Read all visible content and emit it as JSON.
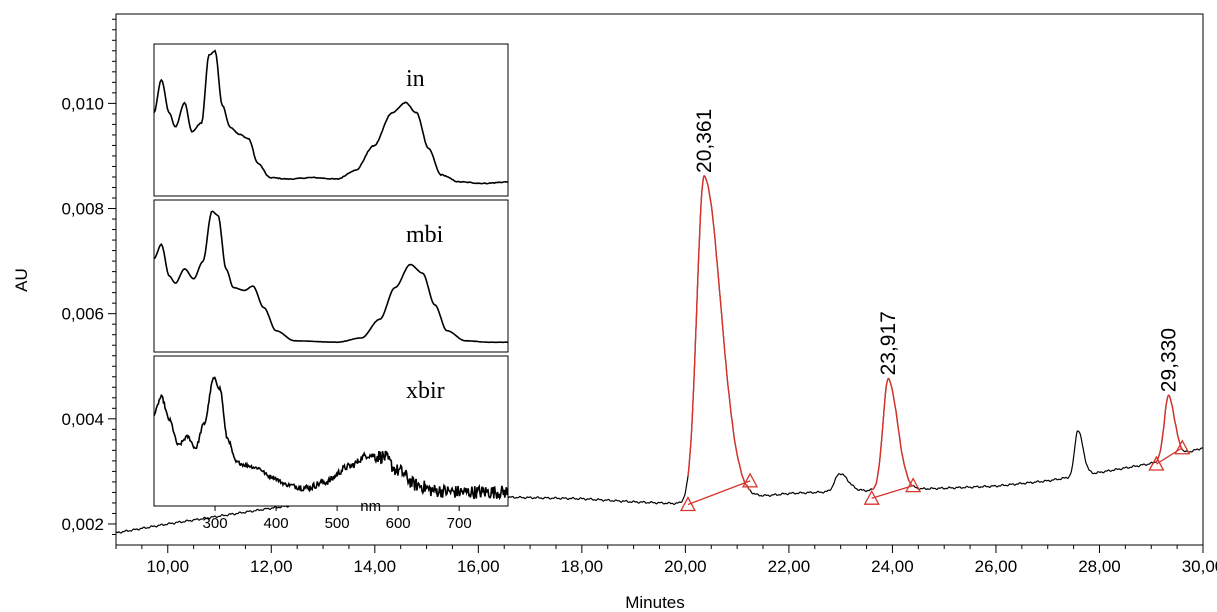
{
  "chart_data": {
    "type": "line",
    "xlabel": "Minutes",
    "ylabel": "AU",
    "xlim": [
      9.0,
      30.0
    ],
    "ylim": [
      0.0016,
      0.0117
    ],
    "x_ticks": [
      10,
      12,
      14,
      16,
      18,
      20,
      22,
      24,
      26,
      28,
      30
    ],
    "x_tick_labels": [
      "10,00",
      "12,00",
      "14,00",
      "16,00",
      "18,00",
      "20,00",
      "22,00",
      "24,00",
      "26,00",
      "28,00",
      "30,00"
    ],
    "y_ticks": [
      0.002,
      0.004,
      0.006,
      0.008,
      0.01
    ],
    "y_tick_labels": [
      "0,002",
      "0,004",
      "0,006",
      "0,008",
      "0,010"
    ],
    "grid": false,
    "chromatogram": {
      "baseline": [
        [
          9.0,
          0.00183
        ],
        [
          10,
          0.002
        ],
        [
          11,
          0.00215
        ],
        [
          12,
          0.0023
        ],
        [
          13,
          0.00243
        ],
        [
          14,
          0.0025
        ],
        [
          16,
          0.00252
        ],
        [
          18,
          0.00248
        ],
        [
          19,
          0.00242
        ],
        [
          20,
          0.00238
        ],
        [
          21,
          0.00248
        ],
        [
          22,
          0.00258
        ],
        [
          23,
          0.00262
        ],
        [
          24,
          0.00265
        ],
        [
          25,
          0.00268
        ],
        [
          26,
          0.00272
        ],
        [
          27,
          0.00282
        ],
        [
          28,
          0.00298
        ],
        [
          29,
          0.00315
        ],
        [
          30,
          0.00345
        ]
      ],
      "peaks": [
        {
          "rt": 20.361,
          "height": 0.0086,
          "width": 0.14,
          "tail": 0.32,
          "integrated": true
        },
        {
          "rt": 22.98,
          "height": 0.00296,
          "width": 0.09,
          "tail": 0.16,
          "integrated": false
        },
        {
          "rt": 23.917,
          "height": 0.00475,
          "width": 0.1,
          "tail": 0.18,
          "integrated": true
        },
        {
          "rt": 27.58,
          "height": 0.00378,
          "width": 0.06,
          "tail": 0.1,
          "integrated": false
        },
        {
          "rt": 29.33,
          "height": 0.00443,
          "width": 0.08,
          "tail": 0.12,
          "integrated": true
        }
      ],
      "peak_labels": [
        {
          "rt": 20.361,
          "apex": 0.0086,
          "text": "20,361"
        },
        {
          "rt": 23.917,
          "apex": 0.00475,
          "text": "23,917"
        },
        {
          "rt": 29.33,
          "apex": 0.00443,
          "text": "29,330"
        }
      ],
      "integration_baselines": [
        {
          "start": [
            20.05,
            0.00237
          ],
          "end": [
            21.25,
            0.00282
          ]
        },
        {
          "start": [
            23.6,
            0.00249
          ],
          "end": [
            24.4,
            0.00273
          ]
        },
        {
          "start": [
            29.1,
            0.00314
          ],
          "end": [
            29.6,
            0.00345
          ]
        }
      ]
    },
    "insets": {
      "x_axis_label": "nm",
      "x_range": [
        200,
        780
      ],
      "x_ticks": [
        300,
        400,
        500,
        600,
        700
      ],
      "x_tick_labels": [
        "300",
        "400",
        "500",
        "600",
        "700"
      ],
      "spectra": [
        {
          "name": "in",
          "points": [
            [
              200,
              0.55
            ],
            [
              212,
              0.78
            ],
            [
              225,
              0.55
            ],
            [
              235,
              0.45
            ],
            [
              250,
              0.62
            ],
            [
              262,
              0.42
            ],
            [
              278,
              0.48
            ],
            [
              290,
              0.95
            ],
            [
              300,
              0.98
            ],
            [
              312,
              0.6
            ],
            [
              325,
              0.45
            ],
            [
              340,
              0.4
            ],
            [
              355,
              0.37
            ],
            [
              370,
              0.2
            ],
            [
              390,
              0.1
            ],
            [
              420,
              0.09
            ],
            [
              460,
              0.1
            ],
            [
              500,
              0.09
            ],
            [
              530,
              0.15
            ],
            [
              560,
              0.32
            ],
            [
              590,
              0.55
            ],
            [
              612,
              0.62
            ],
            [
              630,
              0.55
            ],
            [
              650,
              0.3
            ],
            [
              670,
              0.12
            ],
            [
              700,
              0.07
            ],
            [
              740,
              0.06
            ],
            [
              780,
              0.07
            ]
          ],
          "noise": 0.015
        },
        {
          "name": "mbi",
          "points": [
            [
              200,
              0.62
            ],
            [
              212,
              0.72
            ],
            [
              225,
              0.5
            ],
            [
              235,
              0.45
            ],
            [
              250,
              0.55
            ],
            [
              265,
              0.48
            ],
            [
              280,
              0.6
            ],
            [
              295,
              0.95
            ],
            [
              305,
              0.92
            ],
            [
              318,
              0.55
            ],
            [
              330,
              0.42
            ],
            [
              348,
              0.4
            ],
            [
              362,
              0.43
            ],
            [
              380,
              0.28
            ],
            [
              400,
              0.12
            ],
            [
              430,
              0.05
            ],
            [
              500,
              0.04
            ],
            [
              540,
              0.07
            ],
            [
              570,
              0.2
            ],
            [
              595,
              0.42
            ],
            [
              620,
              0.58
            ],
            [
              640,
              0.52
            ],
            [
              660,
              0.3
            ],
            [
              680,
              0.12
            ],
            [
              710,
              0.05
            ],
            [
              750,
              0.04
            ],
            [
              780,
              0.04
            ]
          ],
          "noise": 0.003
        },
        {
          "name": "xbir",
          "points": [
            [
              200,
              0.62
            ],
            [
              212,
              0.74
            ],
            [
              225,
              0.58
            ],
            [
              240,
              0.4
            ],
            [
              255,
              0.46
            ],
            [
              268,
              0.38
            ],
            [
              282,
              0.55
            ],
            [
              298,
              0.87
            ],
            [
              308,
              0.8
            ],
            [
              320,
              0.45
            ],
            [
              335,
              0.28
            ],
            [
              350,
              0.26
            ],
            [
              370,
              0.24
            ],
            [
              390,
              0.18
            ],
            [
              420,
              0.12
            ],
            [
              450,
              0.1
            ],
            [
              480,
              0.14
            ],
            [
              520,
              0.25
            ],
            [
              550,
              0.33
            ],
            [
              575,
              0.32
            ],
            [
              600,
              0.22
            ],
            [
              630,
              0.12
            ],
            [
              660,
              0.08
            ],
            [
              700,
              0.07
            ],
            [
              780,
              0.07
            ]
          ],
          "noise": 0.06
        }
      ]
    }
  }
}
